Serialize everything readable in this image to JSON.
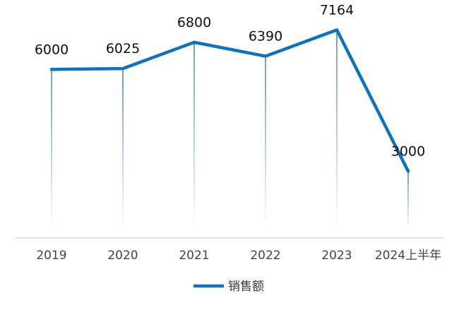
{
  "chart_data": {
    "type": "line",
    "categories": [
      "2019",
      "2020",
      "2021",
      "2022",
      "2023",
      "2024上半年"
    ],
    "series": [
      {
        "name": "销售额",
        "values": [
          6000,
          6025,
          6800,
          6390,
          7164,
          3000
        ],
        "color": "#1072BA"
      }
    ],
    "title": "",
    "xlabel": "",
    "ylabel": "",
    "ylim": [
      0,
      8000
    ],
    "grid": false,
    "legend": "bottom-center",
    "drop_lines": true
  }
}
